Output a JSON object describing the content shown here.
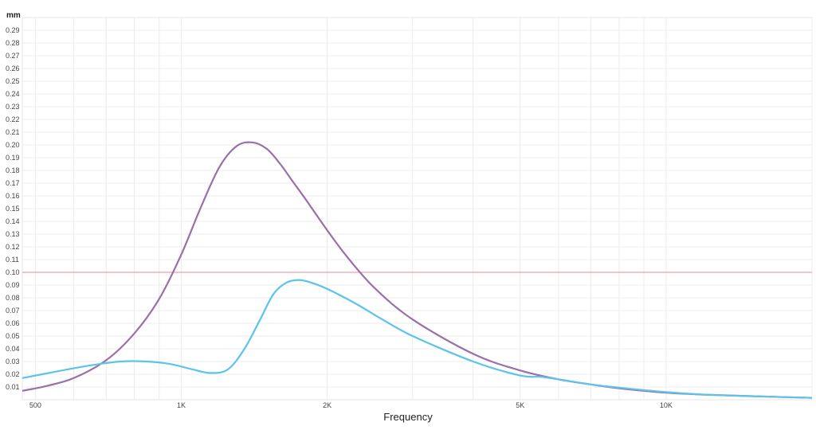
{
  "chart_data": {
    "type": "line",
    "title": "",
    "xlabel": "Frequency",
    "ylabel": "mm",
    "x_scale": "log",
    "xlim": [
      470,
      20000
    ],
    "ylim": [
      0,
      0.3
    ],
    "grid": true,
    "legend": "none",
    "y_ticks": [
      "0.01",
      "0.02",
      "0.03",
      "0.04",
      "0.05",
      "0.06",
      "0.07",
      "0.08",
      "0.09",
      "0.10",
      "0.11",
      "0.12",
      "0.13",
      "0.14",
      "0.15",
      "0.16",
      "0.17",
      "0.18",
      "0.19",
      "0.20",
      "0.21",
      "0.22",
      "0.23",
      "0.24",
      "0.25",
      "0.26",
      "0.27",
      "0.28",
      "0.29"
    ],
    "x_ticks": [
      {
        "value": 500,
        "label": "500"
      },
      {
        "value": 1000,
        "label": "1K"
      },
      {
        "value": 2000,
        "label": "2K"
      },
      {
        "value": 5000,
        "label": "5K"
      },
      {
        "value": 10000,
        "label": "10K"
      }
    ],
    "reference_line": {
      "y": 0.1,
      "color": "#e88a9a"
    },
    "series": [
      {
        "color": "#9b6fa8",
        "x": [
          470,
          530,
          600,
          700,
          800,
          900,
          1000,
          1100,
          1200,
          1300,
          1400,
          1500,
          1600,
          1700,
          1800,
          2000,
          2200,
          2500,
          3000,
          4000,
          5000,
          6000,
          7000,
          8000,
          10000,
          12000,
          15000,
          20000
        ],
        "y": [
          0.007,
          0.011,
          0.017,
          0.031,
          0.052,
          0.079,
          0.114,
          0.152,
          0.183,
          0.199,
          0.202,
          0.197,
          0.185,
          0.171,
          0.158,
          0.133,
          0.112,
          0.088,
          0.063,
          0.036,
          0.023,
          0.016,
          0.012,
          0.009,
          0.0055,
          0.004,
          0.0028,
          0.0015
        ]
      },
      {
        "color": "#5cc4ea",
        "x": [
          470,
          550,
          650,
          750,
          850,
          950,
          1050,
          1150,
          1250,
          1350,
          1450,
          1550,
          1650,
          1750,
          1850,
          2000,
          2300,
          2600,
          3000,
          4000,
          5000,
          5500,
          6000,
          7000,
          8000,
          10000,
          12000,
          15000,
          20000
        ],
        "y": [
          0.017,
          0.022,
          0.027,
          0.03,
          0.03,
          0.028,
          0.024,
          0.021,
          0.024,
          0.04,
          0.062,
          0.083,
          0.092,
          0.094,
          0.092,
          0.087,
          0.075,
          0.063,
          0.05,
          0.03,
          0.019,
          0.018,
          0.016,
          0.012,
          0.0095,
          0.006,
          0.004,
          0.0028,
          0.0015
        ]
      }
    ]
  }
}
